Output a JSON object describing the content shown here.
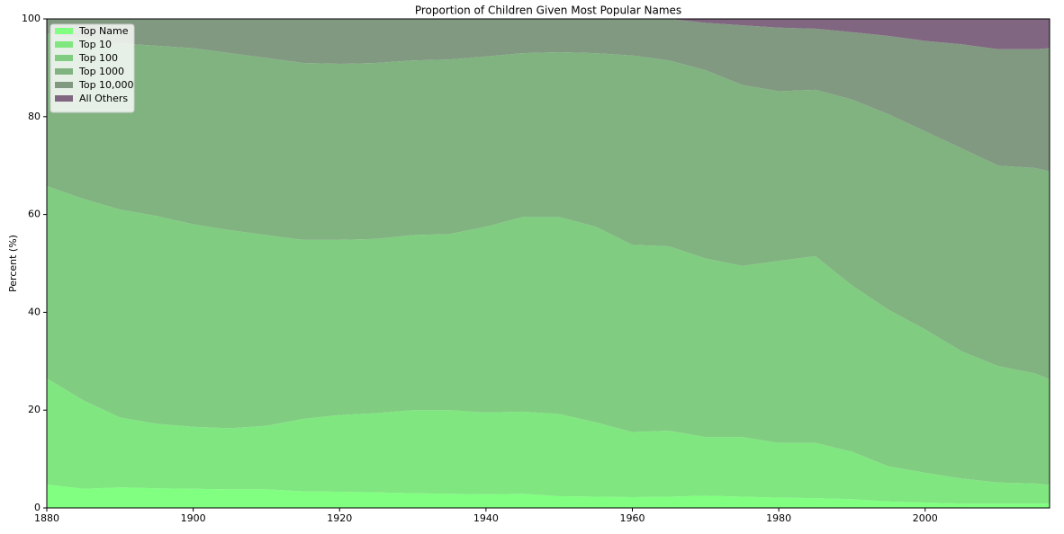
{
  "chart_data": {
    "type": "stacked_area",
    "title": "Proportion of Children Given Most Popular Names",
    "ylabel": "Percent (%)",
    "x": [
      1880,
      1885,
      1890,
      1895,
      1900,
      1905,
      1910,
      1915,
      1920,
      1925,
      1930,
      1935,
      1940,
      1945,
      1950,
      1955,
      1960,
      1965,
      1970,
      1975,
      1980,
      1985,
      1990,
      1995,
      2000,
      2005,
      2010,
      2015,
      2017
    ],
    "series": [
      {
        "name": "Top Name",
        "color": "#80ff80",
        "values": [
          4.8,
          3.9,
          4.2,
          4.0,
          3.9,
          3.8,
          3.8,
          3.4,
          3.3,
          3.2,
          3.0,
          2.9,
          2.8,
          2.9,
          2.4,
          2.3,
          2.2,
          2.3,
          2.5,
          2.3,
          2.1,
          2.0,
          1.8,
          1.3,
          1.1,
          0.9,
          0.9,
          0.9,
          0.9
        ]
      },
      {
        "name": "Top 10",
        "color": "#80e680",
        "values": [
          21.7,
          18.1,
          14.3,
          13.2,
          12.7,
          12.5,
          13.0,
          14.8,
          15.7,
          16.2,
          17.0,
          17.1,
          16.7,
          16.8,
          16.8,
          15.2,
          13.3,
          13.5,
          12.0,
          12.2,
          11.2,
          11.3,
          9.7,
          7.2,
          6.1,
          5.1,
          4.3,
          4.1,
          3.8
        ]
      },
      {
        "name": "Top 100",
        "color": "#80cc80",
        "values": [
          39.3,
          41.2,
          42.5,
          42.5,
          41.4,
          40.5,
          39.0,
          36.6,
          35.8,
          35.6,
          35.8,
          36.0,
          38.0,
          39.8,
          40.3,
          40.0,
          38.3,
          37.7,
          36.5,
          35.0,
          37.2,
          38.2,
          34.0,
          32.0,
          29.3,
          26.0,
          23.8,
          22.5,
          21.6
        ]
      },
      {
        "name": "Top 1000",
        "color": "#80b380",
        "values": [
          31.2,
          32.8,
          34.0,
          34.8,
          36.0,
          36.2,
          36.2,
          36.2,
          36.0,
          36.0,
          35.7,
          35.7,
          34.8,
          33.5,
          33.7,
          35.5,
          38.7,
          38.0,
          38.5,
          37.0,
          34.7,
          34.0,
          38.0,
          40.0,
          40.5,
          41.5,
          41.0,
          42.0,
          42.5
        ]
      },
      {
        "name": "Top 10,000",
        "color": "#809980",
        "values": [
          3,
          4,
          5,
          5.5,
          6,
          7,
          8,
          9,
          9.2,
          9,
          8.5,
          8.3,
          7.7,
          7,
          6.8,
          7,
          7.5,
          8.5,
          9.7,
          12.2,
          13.0,
          12.5,
          13.8,
          16.0,
          18.5,
          21.3,
          23.8,
          24.3,
          25.2
        ]
      },
      {
        "name": "All Others",
        "color": "#806680",
        "values": [
          0,
          0,
          0,
          0,
          0,
          0,
          0,
          0,
          0,
          0,
          0,
          0,
          0,
          0,
          0,
          0,
          0,
          0,
          0.8,
          1.3,
          1.8,
          2.0,
          2.7,
          3.5,
          4.5,
          5.2,
          6.2,
          6.2,
          6.0
        ]
      }
    ],
    "xlim": [
      1880,
      2017
    ],
    "xticks": [
      1880,
      1900,
      1920,
      1940,
      1960,
      1980,
      2000
    ],
    "ylim": [
      0,
      100
    ],
    "yticks": [
      0,
      20,
      40,
      60,
      80,
      100
    ],
    "legend": "upper left"
  }
}
